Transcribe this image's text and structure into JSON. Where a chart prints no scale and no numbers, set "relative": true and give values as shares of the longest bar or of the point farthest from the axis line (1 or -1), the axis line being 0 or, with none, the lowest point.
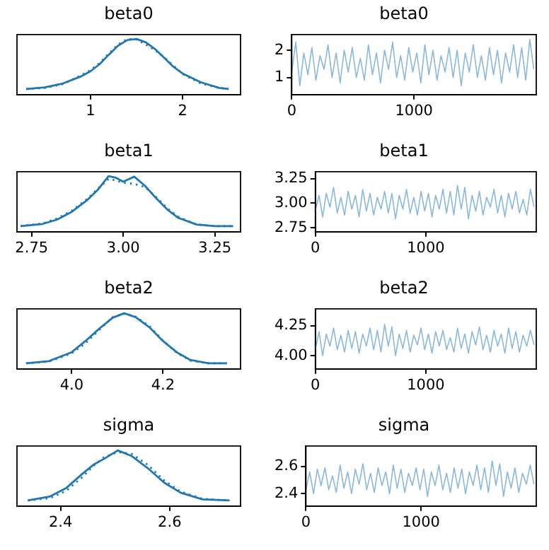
{
  "chart_data": [
    {
      "type": "line",
      "title": "beta0",
      "relative": true,
      "xlim": [
        0.2,
        2.63
      ],
      "xticks": [
        1,
        2
      ],
      "marker": "none",
      "series": [
        {
          "color": "#1f77b4",
          "x": [
            0.3,
            0.5,
            0.7,
            0.9,
            1.0,
            1.1,
            1.2,
            1.3,
            1.4,
            1.5,
            1.6,
            1.7,
            1.8,
            1.9,
            2.0,
            2.2,
            2.4,
            2.5
          ],
          "values": [
            0.1,
            0.13,
            0.2,
            0.33,
            0.42,
            0.55,
            0.72,
            0.88,
            0.98,
            1.0,
            0.94,
            0.82,
            0.66,
            0.5,
            0.38,
            0.22,
            0.12,
            0.1
          ]
        },
        {
          "color": "#1f77b4",
          "line_style": "dotted",
          "x": [
            0.3,
            0.5,
            0.7,
            0.9,
            1.0,
            1.1,
            1.2,
            1.3,
            1.4,
            1.5,
            1.6,
            1.7,
            1.8,
            1.9,
            2.0,
            2.2,
            2.4,
            2.5
          ],
          "values": [
            0.1,
            0.12,
            0.19,
            0.35,
            0.44,
            0.57,
            0.74,
            0.9,
            1.0,
            0.99,
            0.9,
            0.8,
            0.67,
            0.52,
            0.37,
            0.2,
            0.12,
            0.1
          ]
        }
      ]
    },
    {
      "type": "line",
      "title": "beta0",
      "xlim": [
        0,
        2000
      ],
      "xticks": [
        0,
        1000
      ],
      "ylim": [
        0.37,
        2.58
      ],
      "yticks": [
        1,
        2
      ],
      "marker": "none",
      "x": [
        0,
        33,
        66,
        99,
        132,
        165,
        198,
        231,
        264,
        297,
        330,
        363,
        396,
        429,
        462,
        495,
        528,
        561,
        594,
        627,
        660,
        693,
        726,
        759,
        792,
        825,
        858,
        891,
        924,
        957,
        990,
        1023,
        1056,
        1089,
        1122,
        1155,
        1188,
        1221,
        1254,
        1287,
        1320,
        1353,
        1386,
        1419,
        1452,
        1485,
        1518,
        1551,
        1584,
        1617,
        1650,
        1683,
        1716,
        1749,
        1782,
        1815,
        1848,
        1881,
        1914,
        1947,
        1980
      ],
      "series": [
        {
          "color": "#8ab8dc",
          "values": [
            1.2,
            2.3,
            0.7,
            1.9,
            1.1,
            2.1,
            0.9,
            1.8,
            1.3,
            2.2,
            1.0,
            1.9,
            0.8,
            2.0,
            1.2,
            2.1,
            1.0,
            1.7,
            0.9,
            2.2,
            1.1,
            1.9,
            0.8,
            2.0,
            1.3,
            2.3,
            1.0,
            1.8,
            0.9,
            2.1,
            1.2,
            1.9,
            0.8,
            2.2,
            1.1,
            2.0,
            0.9,
            1.8,
            1.2,
            2.1,
            1.0,
            2.0,
            0.7,
            1.9,
            1.2,
            2.2,
            1.0,
            1.8,
            0.9,
            2.1,
            1.1,
            2.0,
            0.8,
            1.9,
            1.2,
            2.2,
            1.0,
            2.1,
            0.9,
            2.4,
            1.3
          ]
        }
      ]
    },
    {
      "type": "line",
      "title": "beta1",
      "relative": true,
      "xlim": [
        2.71,
        3.32
      ],
      "xticks": [
        {
          "value": 2.75,
          "label": "2.75"
        },
        {
          "value": 3,
          "label": "3.00"
        },
        {
          "value": 3.25,
          "label": "3.25"
        }
      ],
      "marker": "none",
      "series": [
        {
          "color": "#1f77b4",
          "x": [
            2.72,
            2.78,
            2.82,
            2.86,
            2.9,
            2.93,
            2.96,
            2.98,
            3.0,
            3.03,
            3.06,
            3.09,
            3.12,
            3.15,
            3.2,
            3.25,
            3.3
          ],
          "values": [
            0.1,
            0.14,
            0.22,
            0.36,
            0.56,
            0.75,
            1.0,
            0.97,
            0.9,
            0.99,
            0.82,
            0.6,
            0.4,
            0.25,
            0.13,
            0.1,
            0.1
          ]
        },
        {
          "color": "#1f77b4",
          "line_style": "dotted",
          "x": [
            2.72,
            2.78,
            2.82,
            2.86,
            2.9,
            2.93,
            2.96,
            2.98,
            3.0,
            3.03,
            3.06,
            3.09,
            3.12,
            3.15,
            3.2,
            3.25,
            3.3
          ],
          "values": [
            0.1,
            0.15,
            0.24,
            0.38,
            0.58,
            0.77,
            0.95,
            0.92,
            0.88,
            0.86,
            0.8,
            0.62,
            0.42,
            0.27,
            0.13,
            0.1,
            0.1
          ]
        }
      ]
    },
    {
      "type": "line",
      "title": "beta1",
      "xlim": [
        0,
        2000
      ],
      "xticks": [
        0,
        1000
      ],
      "ylim": [
        2.71,
        3.32
      ],
      "yticks": [
        {
          "value": 2.75,
          "label": "2.75"
        },
        {
          "value": 3,
          "label": "3.00"
        },
        {
          "value": 3.25,
          "label": "3.25"
        }
      ],
      "marker": "none",
      "x": [
        0,
        33,
        66,
        99,
        132,
        165,
        198,
        231,
        264,
        297,
        330,
        363,
        396,
        429,
        462,
        495,
        528,
        561,
        594,
        627,
        660,
        693,
        726,
        759,
        792,
        825,
        858,
        891,
        924,
        957,
        990,
        1023,
        1056,
        1089,
        1122,
        1155,
        1188,
        1221,
        1254,
        1287,
        1320,
        1353,
        1386,
        1419,
        1452,
        1485,
        1518,
        1551,
        1584,
        1617,
        1650,
        1683,
        1716,
        1749,
        1782,
        1815,
        1848,
        1881,
        1914,
        1947,
        1980
      ],
      "series": [
        {
          "color": "#8ab8dc",
          "values": [
            2.92,
            3.08,
            2.86,
            3.1,
            2.96,
            3.16,
            2.9,
            3.06,
            2.88,
            3.12,
            2.94,
            3.08,
            2.86,
            3.14,
            2.92,
            3.1,
            2.88,
            3.06,
            2.94,
            3.12,
            2.9,
            3.1,
            2.84,
            3.08,
            2.94,
            3.14,
            2.9,
            3.06,
            2.88,
            3.12,
            2.92,
            3.1,
            2.86,
            3.08,
            2.94,
            3.14,
            2.9,
            3.12,
            2.88,
            3.18,
            2.94,
            3.16,
            2.84,
            3.08,
            2.92,
            3.12,
            2.88,
            3.06,
            2.96,
            3.14,
            2.9,
            3.08,
            2.86,
            3.1,
            2.94,
            3.12,
            2.9,
            3.04,
            2.88,
            3.14,
            2.96
          ]
        }
      ]
    },
    {
      "type": "line",
      "title": "beta2",
      "relative": true,
      "xlim": [
        3.88,
        4.37
      ],
      "xticks": [
        {
          "value": 4,
          "label": "4.0"
        },
        {
          "value": 4.2,
          "label": "4.2"
        }
      ],
      "marker": "none",
      "series": [
        {
          "color": "#1f77b4",
          "x": [
            3.9,
            3.95,
            4.0,
            4.03,
            4.06,
            4.09,
            4.115,
            4.14,
            4.17,
            4.2,
            4.23,
            4.26,
            4.3,
            4.34
          ],
          "values": [
            0.1,
            0.14,
            0.3,
            0.5,
            0.72,
            0.92,
            1.0,
            0.93,
            0.75,
            0.5,
            0.3,
            0.16,
            0.1,
            0.1
          ]
        },
        {
          "color": "#1f77b4",
          "line_style": "dotted",
          "x": [
            3.9,
            3.95,
            4.0,
            4.03,
            4.06,
            4.09,
            4.115,
            4.14,
            4.17,
            4.2,
            4.23,
            4.26,
            4.3,
            4.34
          ],
          "values": [
            0.1,
            0.13,
            0.28,
            0.46,
            0.7,
            0.93,
            0.99,
            0.94,
            0.77,
            0.51,
            0.29,
            0.15,
            0.1,
            0.1
          ]
        }
      ]
    },
    {
      "type": "line",
      "title": "beta2",
      "xlim": [
        0,
        2000
      ],
      "xticks": [
        0,
        1000
      ],
      "ylim": [
        3.89,
        4.39
      ],
      "yticks": [
        {
          "value": 4,
          "label": "4.00"
        },
        {
          "value": 4.25,
          "label": "4.25"
        }
      ],
      "marker": "none",
      "x": [
        0,
        33,
        66,
        99,
        132,
        165,
        198,
        231,
        264,
        297,
        330,
        363,
        396,
        429,
        462,
        495,
        528,
        561,
        594,
        627,
        660,
        693,
        726,
        759,
        792,
        825,
        858,
        891,
        924,
        957,
        990,
        1023,
        1056,
        1089,
        1122,
        1155,
        1188,
        1221,
        1254,
        1287,
        1320,
        1353,
        1386,
        1419,
        1452,
        1485,
        1518,
        1551,
        1584,
        1617,
        1650,
        1683,
        1716,
        1749,
        1782,
        1815,
        1848,
        1881,
        1914,
        1947,
        1980
      ],
      "series": [
        {
          "color": "#8ab8dc",
          "values": [
            4.05,
            4.2,
            4.0,
            4.18,
            4.08,
            4.23,
            4.05,
            4.17,
            4.03,
            4.21,
            4.06,
            4.2,
            4.02,
            4.18,
            4.08,
            4.23,
            4.05,
            4.21,
            4.03,
            4.26,
            4.08,
            4.24,
            4.0,
            4.18,
            4.06,
            4.21,
            4.03,
            4.17,
            4.09,
            4.23,
            4.05,
            4.18,
            4.02,
            4.2,
            4.08,
            4.21,
            4.05,
            4.15,
            4.03,
            4.23,
            4.06,
            4.18,
            4.02,
            4.2,
            4.09,
            4.24,
            4.05,
            4.17,
            4.03,
            4.21,
            4.08,
            4.18,
            4.02,
            4.23,
            4.06,
            4.2,
            4.03,
            4.17,
            4.08,
            4.21,
            4.09
          ]
        }
      ]
    },
    {
      "type": "line",
      "title": "sigma",
      "relative": true,
      "xlim": [
        2.32,
        2.73
      ],
      "xticks": [
        {
          "value": 2.4,
          "label": "2.4"
        },
        {
          "value": 2.6,
          "label": "2.6"
        }
      ],
      "marker": "none",
      "series": [
        {
          "color": "#1f77b4",
          "x": [
            2.34,
            2.38,
            2.41,
            2.44,
            2.46,
            2.48,
            2.505,
            2.53,
            2.56,
            2.59,
            2.62,
            2.66,
            2.71
          ],
          "values": [
            0.1,
            0.17,
            0.32,
            0.58,
            0.74,
            0.85,
            1.0,
            0.9,
            0.68,
            0.42,
            0.24,
            0.12,
            0.1
          ]
        },
        {
          "color": "#1f77b4",
          "line_style": "dotted",
          "x": [
            2.34,
            2.38,
            2.41,
            2.44,
            2.46,
            2.48,
            2.505,
            2.53,
            2.56,
            2.59,
            2.62,
            2.66,
            2.71
          ],
          "values": [
            0.1,
            0.14,
            0.27,
            0.52,
            0.72,
            0.88,
            0.97,
            0.94,
            0.74,
            0.46,
            0.26,
            0.13,
            0.1
          ]
        }
      ]
    },
    {
      "type": "line",
      "title": "sigma",
      "xlim": [
        0,
        2000
      ],
      "xticks": [
        0,
        1000
      ],
      "ylim": [
        2.31,
        2.75
      ],
      "yticks": [
        {
          "value": 2.4,
          "label": "2.4"
        },
        {
          "value": 2.6,
          "label": "2.6"
        }
      ],
      "marker": "none",
      "x": [
        0,
        33,
        66,
        99,
        132,
        165,
        198,
        231,
        264,
        297,
        330,
        363,
        396,
        429,
        462,
        495,
        528,
        561,
        594,
        627,
        660,
        693,
        726,
        759,
        792,
        825,
        858,
        891,
        924,
        957,
        990,
        1023,
        1056,
        1089,
        1122,
        1155,
        1188,
        1221,
        1254,
        1287,
        1320,
        1353,
        1386,
        1419,
        1452,
        1485,
        1518,
        1551,
        1584,
        1617,
        1650,
        1683,
        1716,
        1749,
        1782,
        1815,
        1848,
        1881,
        1914,
        1947,
        1980
      ],
      "series": [
        {
          "color": "#8ab8dc",
          "values": [
            2.43,
            2.56,
            2.4,
            2.58,
            2.46,
            2.59,
            2.43,
            2.53,
            2.41,
            2.61,
            2.44,
            2.56,
            2.4,
            2.58,
            2.47,
            2.62,
            2.43,
            2.55,
            2.41,
            2.59,
            2.46,
            2.56,
            2.4,
            2.61,
            2.44,
            2.58,
            2.41,
            2.55,
            2.46,
            2.59,
            2.43,
            2.58,
            2.38,
            2.56,
            2.46,
            2.61,
            2.43,
            2.55,
            2.41,
            2.59,
            2.44,
            2.58,
            2.4,
            2.56,
            2.46,
            2.61,
            2.43,
            2.59,
            2.41,
            2.64,
            2.46,
            2.62,
            2.38,
            2.56,
            2.44,
            2.59,
            2.41,
            2.55,
            2.47,
            2.61,
            2.47
          ]
        }
      ]
    }
  ]
}
